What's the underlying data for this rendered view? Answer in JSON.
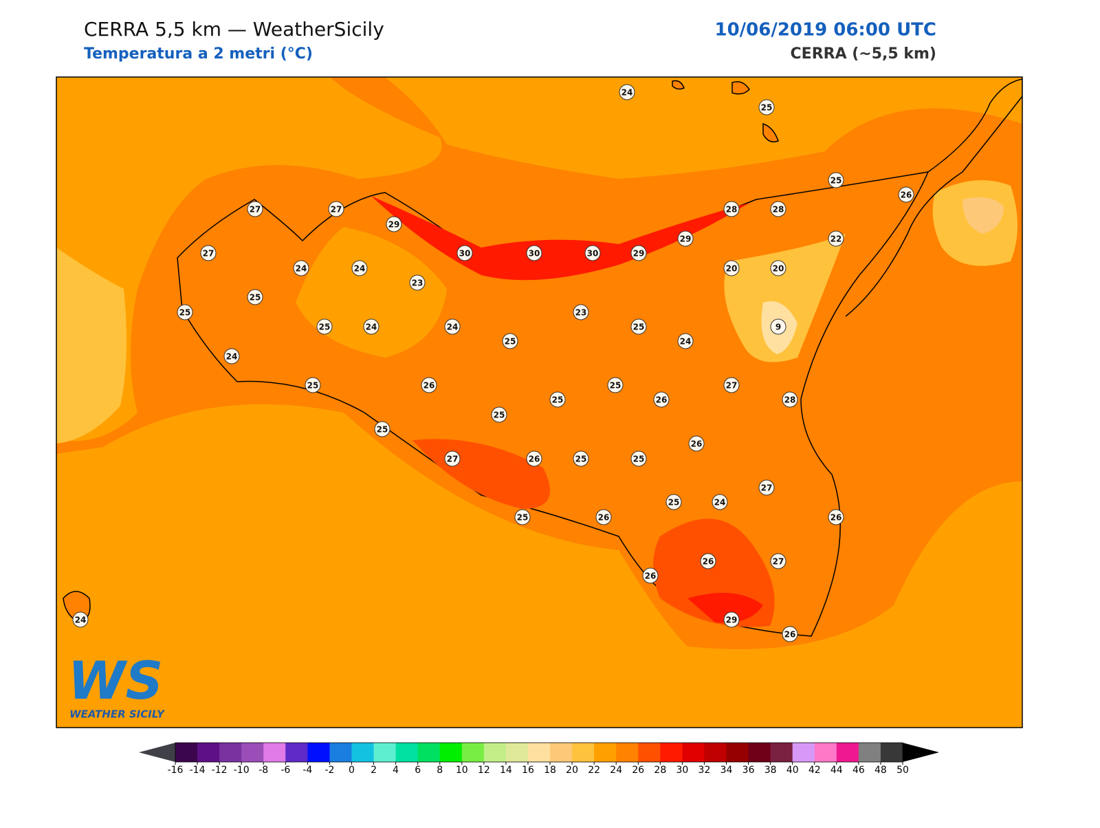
{
  "header": {
    "title": "CERRA 5,5 km — WeatherSicily",
    "subtitle": "Temperatura a 2 metri (°C)",
    "datetime": "10/06/2019 06:00 UTC",
    "model": "CERRA (~5,5 km)"
  },
  "logo": {
    "mark": "WS",
    "name": "WEATHER SICILY"
  },
  "stations": [
    24,
    25,
    25,
    26,
    27,
    27,
    29,
    28,
    28,
    27,
    30,
    30,
    30,
    29,
    29,
    22,
    24,
    24,
    23,
    20,
    20,
    25,
    25,
    23,
    25,
    24,
    24,
    25,
    9,
    25,
    24,
    24,
    25,
    26,
    25,
    27,
    25,
    26,
    28,
    25,
    25,
    26,
    27,
    26,
    25,
    25,
    27,
    25,
    24,
    25,
    26,
    26,
    26,
    27,
    26,
    29,
    26,
    24
  ],
  "colorbar": {
    "ticks": [
      -16,
      -14,
      -12,
      -10,
      -8,
      -6,
      -4,
      -2,
      0,
      2,
      4,
      6,
      8,
      10,
      12,
      14,
      16,
      18,
      20,
      22,
      24,
      26,
      28,
      30,
      32,
      34,
      36,
      38,
      40,
      42,
      44,
      46,
      48,
      50
    ],
    "colors": [
      "#3c064e",
      "#5e1186",
      "#7a32a0",
      "#9b4eb8",
      "#e17be8",
      "#5e2ac8",
      "#0010ff",
      "#1a7ee0",
      "#12c2e0",
      "#5eefd0",
      "#00e0a0",
      "#00e060",
      "#00ee00",
      "#78ee44",
      "#c2ee88",
      "#e0e89a",
      "#ffe0a0",
      "#fdc878",
      "#ffc23c",
      "#ffa000",
      "#ff8200",
      "#ff5000",
      "#ff1a00",
      "#e00000",
      "#c00000",
      "#960000",
      "#700018",
      "#7a2040",
      "#d898f8",
      "#ff78c8",
      "#f01890",
      "#808080",
      "#383838"
    ],
    "under": "#404048",
    "over": "#000000"
  }
}
